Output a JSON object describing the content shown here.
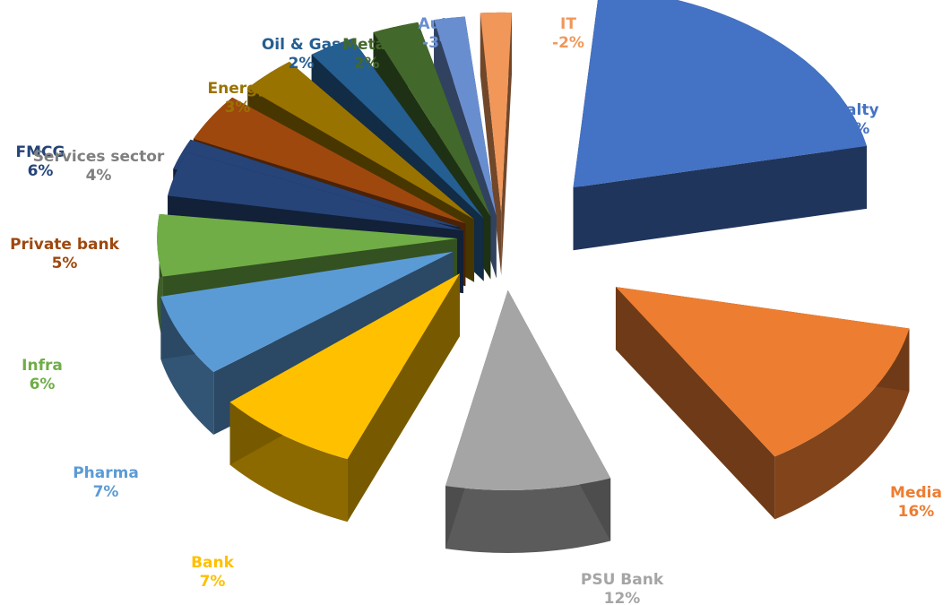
{
  "chart_data": {
    "type": "pie",
    "style": "3d-exploded",
    "title": "",
    "slices": [
      {
        "label": "Realty",
        "value_label": "27%",
        "value": 27,
        "color": "#4472C4"
      },
      {
        "label": "Media",
        "value_label": "16%",
        "value": 16,
        "color": "#ED7D31"
      },
      {
        "label": "PSU Bank",
        "value_label": "12%",
        "value": 12,
        "color": "#A5A5A5"
      },
      {
        "label": "Bank",
        "value_label": "7%",
        "value": 7,
        "color": "#FFC000"
      },
      {
        "label": "Pharma",
        "value_label": "7%",
        "value": 7,
        "color": "#5B9BD5"
      },
      {
        "label": "Infra",
        "value_label": "6%",
        "value": 6,
        "color": "#70AD47"
      },
      {
        "label": "Private bank",
        "value_label": "5%",
        "value": 5,
        "color": "#264478"
      },
      {
        "label": "FMCG",
        "value_label": "6%",
        "value": 6,
        "color": "#264478"
      },
      {
        "label": "Services sector",
        "value_label": "4%",
        "value": 4,
        "color": "#9E480E"
      },
      {
        "label": "Energy",
        "value_label": "3%",
        "value": 3,
        "color": "#997300"
      },
      {
        "label": "Oil & Gas",
        "value_label": "2%",
        "value": 2,
        "color": "#255E91"
      },
      {
        "label": "Metal",
        "value_label": "2%",
        "value": 2,
        "color": "#43682B"
      },
      {
        "label": "Auto",
        "value_label": "-3%",
        "value": -3,
        "color": "#698ED0"
      },
      {
        "label": "IT",
        "value_label": "-2%",
        "value": -2,
        "color": "#F1975A"
      }
    ]
  }
}
